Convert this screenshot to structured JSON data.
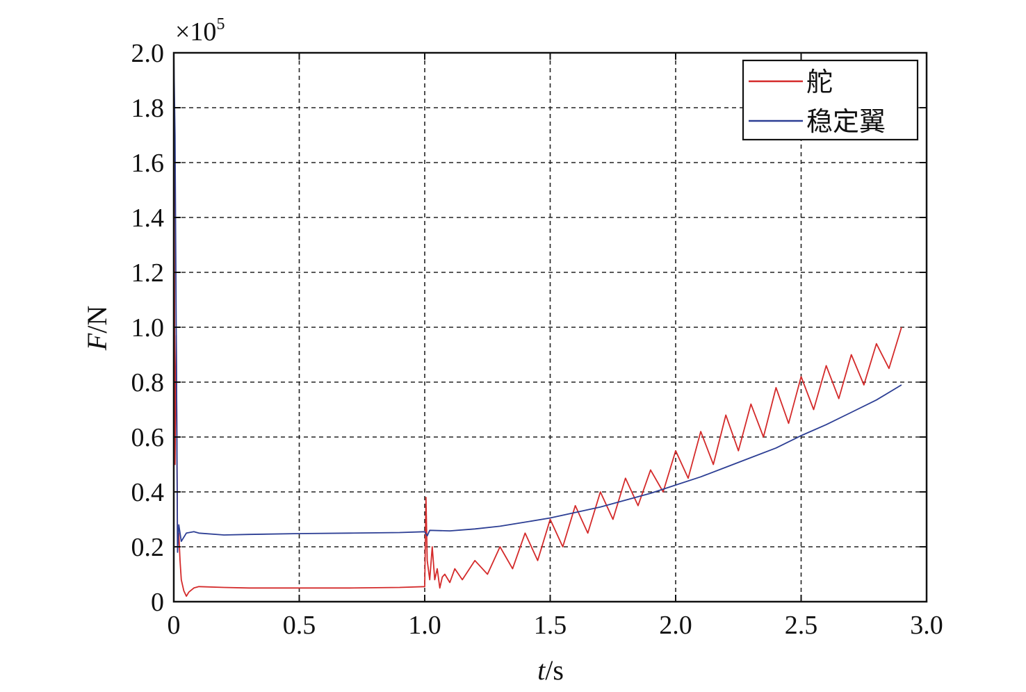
{
  "chart_data": {
    "type": "line",
    "xlabel_var": "t",
    "xlabel_unit": "/s",
    "ylabel_var": "F",
    "ylabel_unit": "/N",
    "y_multiplier": "×10",
    "y_multiplier_exp": "5",
    "xlim": [
      0,
      3.0
    ],
    "ylim": [
      0,
      2.0
    ],
    "x_ticks": [
      "0",
      "0.5",
      "1.0",
      "1.5",
      "2.0",
      "2.5",
      "3.0"
    ],
    "x_tick_values": [
      0,
      0.5,
      1.0,
      1.5,
      2.0,
      2.5,
      3.0
    ],
    "y_ticks": [
      "0",
      "0.2",
      "0.4",
      "0.6",
      "0.8",
      "1.0",
      "1.2",
      "1.4",
      "1.6",
      "1.8",
      "2.0"
    ],
    "y_tick_values": [
      0,
      0.2,
      0.4,
      0.6,
      0.8,
      1.0,
      1.2,
      1.4,
      1.6,
      1.8,
      2.0
    ],
    "grid": true,
    "legend_position": "top-right",
    "series": [
      {
        "name": "舵",
        "color": "#d42a2a",
        "x": [
          0,
          0.005,
          0.01,
          0.015,
          0.02,
          0.025,
          0.03,
          0.04,
          0.05,
          0.06,
          0.08,
          0.1,
          0.2,
          0.3,
          0.5,
          0.7,
          0.9,
          1.0,
          1.005,
          1.01,
          1.02,
          1.03,
          1.04,
          1.05,
          1.06,
          1.07,
          1.08,
          1.1,
          1.12,
          1.15,
          1.2,
          1.25,
          1.3,
          1.35,
          1.4,
          1.45,
          1.5,
          1.55,
          1.6,
          1.65,
          1.7,
          1.75,
          1.8,
          1.85,
          1.9,
          1.95,
          2.0,
          2.05,
          2.1,
          2.15,
          2.2,
          2.25,
          2.3,
          2.35,
          2.4,
          2.45,
          2.5,
          2.55,
          2.6,
          2.65,
          2.7,
          2.75,
          2.8,
          2.85,
          2.9
        ],
        "y": [
          2.0,
          0.5,
          0.97,
          0.2,
          0.25,
          0.15,
          0.08,
          0.04,
          0.02,
          0.035,
          0.05,
          0.055,
          0.052,
          0.05,
          0.05,
          0.05,
          0.052,
          0.055,
          0.38,
          0.15,
          0.08,
          0.2,
          0.08,
          0.12,
          0.05,
          0.09,
          0.1,
          0.07,
          0.12,
          0.08,
          0.15,
          0.1,
          0.2,
          0.12,
          0.25,
          0.15,
          0.3,
          0.2,
          0.35,
          0.25,
          0.4,
          0.3,
          0.45,
          0.35,
          0.48,
          0.4,
          0.55,
          0.45,
          0.62,
          0.5,
          0.68,
          0.55,
          0.72,
          0.6,
          0.78,
          0.65,
          0.82,
          0.7,
          0.86,
          0.74,
          0.9,
          0.79,
          0.94,
          0.85,
          1.0
        ]
      },
      {
        "name": "稳定翼",
        "color": "#2c3e94",
        "x": [
          0,
          0.005,
          0.01,
          0.015,
          0.02,
          0.03,
          0.05,
          0.08,
          0.1,
          0.2,
          0.3,
          0.5,
          0.7,
          0.9,
          1.0,
          1.01,
          1.02,
          1.1,
          1.2,
          1.3,
          1.4,
          1.5,
          1.6,
          1.7,
          1.8,
          1.9,
          2.0,
          2.1,
          2.2,
          2.3,
          2.4,
          2.5,
          2.6,
          2.7,
          2.8,
          2.9
        ],
        "y": [
          2.0,
          1.7,
          0.95,
          0.18,
          0.28,
          0.22,
          0.25,
          0.255,
          0.25,
          0.243,
          0.245,
          0.248,
          0.25,
          0.252,
          0.255,
          0.24,
          0.26,
          0.258,
          0.265,
          0.275,
          0.29,
          0.305,
          0.325,
          0.345,
          0.37,
          0.395,
          0.425,
          0.455,
          0.49,
          0.525,
          0.56,
          0.605,
          0.645,
          0.69,
          0.735,
          0.79
        ]
      }
    ]
  }
}
